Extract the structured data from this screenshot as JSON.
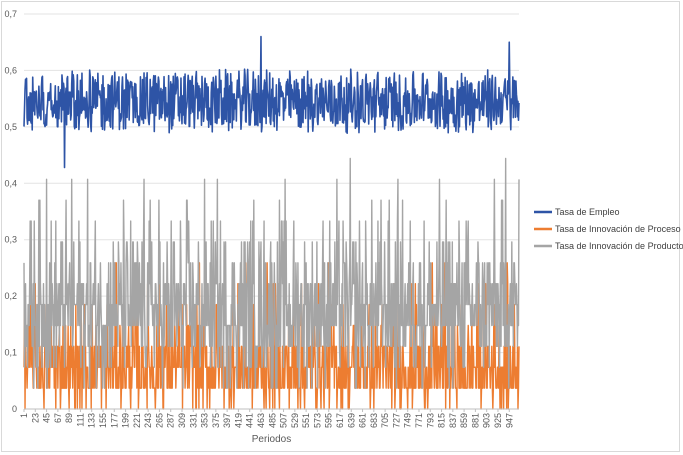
{
  "chart_data": {
    "type": "line",
    "xlabel": "Periodos",
    "ylabel": "",
    "ylim": [
      0,
      0.7
    ],
    "yticks": [
      "0",
      "0,1",
      "0,2",
      "0,3",
      "0,4",
      "0,5",
      "0,6",
      "0,7"
    ],
    "x_start": 1,
    "x_end": 966,
    "x_tick_step": 22,
    "grid": true,
    "legend_position": "right",
    "series": [
      {
        "name": "Tasa de Empleo",
        "color": "#2e54a6",
        "mean": 0.545,
        "amplitude": 0.05,
        "min": 0.428,
        "max": 0.66,
        "points": [
          {
            "x": 80,
            "y": 0.428
          },
          {
            "x": 463,
            "y": 0.66
          },
          {
            "x": 947,
            "y": 0.65
          }
        ]
      },
      {
        "name": "Tasa de Innovación de Proceso",
        "color": "#ed7d31",
        "levels": [
          0,
          0.037,
          0.074,
          0.111,
          0.148,
          0.185,
          0.222,
          0.259
        ],
        "typical_range": [
          0.037,
          0.111
        ],
        "max": 0.259
      },
      {
        "name": "Tasa de Innovación de Producto",
        "color": "#a5a5a5",
        "levels": [
          0.037,
          0.074,
          0.111,
          0.148,
          0.185,
          0.222,
          0.259,
          0.296,
          0.333,
          0.37,
          0.407,
          0.444
        ],
        "typical_range": [
          0.111,
          0.259
        ],
        "max": 0.444,
        "points": [
          {
            "x": 45,
            "y": 0.407
          },
          {
            "x": 940,
            "y": 0.444
          },
          {
            "x": 966,
            "y": 0.407
          }
        ]
      }
    ]
  }
}
